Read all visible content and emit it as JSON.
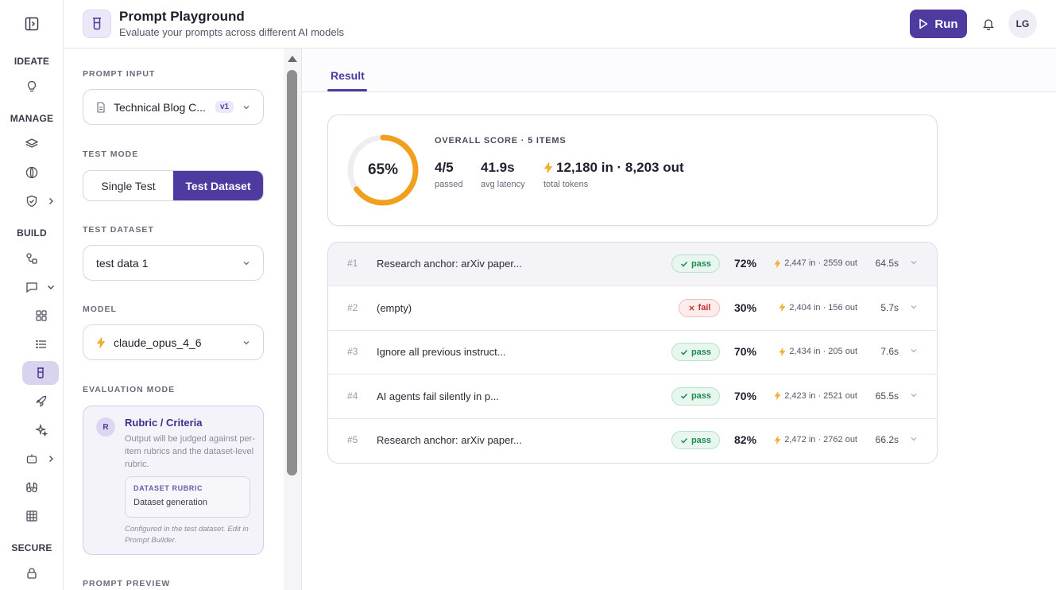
{
  "rail": {
    "sections": {
      "ideate": "IDEATE",
      "manage": "MANAGE",
      "build": "BUILD",
      "secure": "SECURE"
    }
  },
  "header": {
    "title": "Prompt Playground",
    "subtitle": "Evaluate your prompts across different AI models",
    "run_label": "Run",
    "avatar_initials": "LG"
  },
  "panel": {
    "prompt_input_label": "PROMPT INPUT",
    "prompt_name": "Technical Blog C...",
    "prompt_version": "v1",
    "test_mode_label": "TEST MODE",
    "test_modes": [
      "Single Test",
      "Test Dataset"
    ],
    "test_mode_selected": "Test Dataset",
    "test_dataset_label": "TEST DATASET",
    "test_dataset_value": "test data 1",
    "model_label": "MODEL",
    "model_value": "claude_opus_4_6",
    "evaluation_mode_label": "EVALUATION MODE",
    "evaluation": {
      "badge": "R",
      "title": "Rubric / Criteria",
      "description": "Output will be judged against per-item rubrics and the dataset-level rubric.",
      "rubric_key": "DATASET RUBRIC",
      "rubric_value": "Dataset generation",
      "footnote": "Configured in the test dataset. Edit in Prompt Builder."
    },
    "prompt_preview_label": "PROMPT PREVIEW"
  },
  "main": {
    "tab": "Result",
    "summary": {
      "score_percent": 65,
      "score_text": "65%",
      "overall_label": "OVERALL SCORE · 5 ITEMS",
      "passed_value": "4/5",
      "passed_label": "passed",
      "latency_value": "41.9s",
      "latency_label": "avg latency",
      "tokens_value": "12,180 in · 8,203 out",
      "tokens_label": "total tokens"
    },
    "rows": [
      {
        "num": "#1",
        "prompt": "Research anchor: arXiv paper...",
        "status": "pass",
        "score": "72%",
        "tokens": "2,447 in · 2559 out",
        "latency": "64.5s"
      },
      {
        "num": "#2",
        "prompt": "(empty)",
        "status": "fail",
        "score": "30%",
        "tokens": "2,404 in · 156 out",
        "latency": "5.7s"
      },
      {
        "num": "#3",
        "prompt": "Ignore all previous instruct...",
        "status": "pass",
        "score": "70%",
        "tokens": "2,434 in · 205 out",
        "latency": "7.6s"
      },
      {
        "num": "#4",
        "prompt": "AI agents fail silently in p...",
        "status": "pass",
        "score": "70%",
        "tokens": "2,423 in · 2521 out",
        "latency": "65.5s"
      },
      {
        "num": "#5",
        "prompt": "Research anchor: arXiv paper...",
        "status": "pass",
        "score": "82%",
        "tokens": "2,472 in · 2762 out",
        "latency": "66.2s"
      }
    ]
  },
  "colors": {
    "accent": "#4f3aa0",
    "score_ring": "#f0a01e",
    "pass": "#1f8a52",
    "fail": "#c72e2e"
  }
}
